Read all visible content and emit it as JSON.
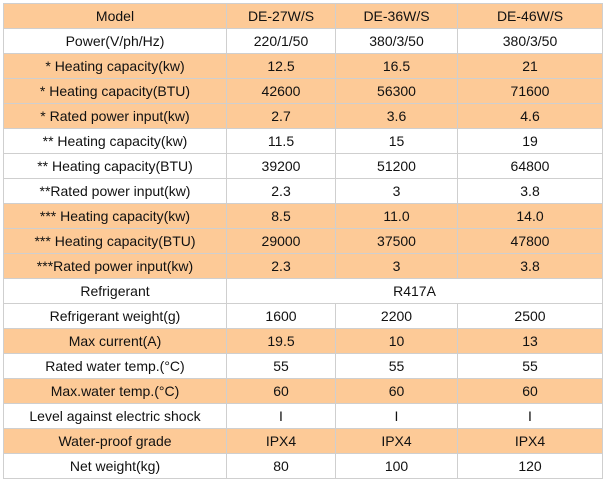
{
  "header": [
    "Model",
    "DE-27W/S",
    "DE-36W/S",
    "DE-46W/S"
  ],
  "rows": [
    {
      "label": "Power(V/ph/Hz)",
      "values": [
        "220/1/50",
        "380/3/50",
        "380/3/50"
      ],
      "shaded": false
    },
    {
      "label": "* Heating capacity(kw)",
      "values": [
        "12.5",
        "16.5",
        "21"
      ],
      "shaded": true
    },
    {
      "label": "* Heating capacity(BTU)",
      "values": [
        "42600",
        "56300",
        "71600"
      ],
      "shaded": true
    },
    {
      "label": "* Rated power input(kw)",
      "values": [
        "2.7",
        "3.6",
        "4.6"
      ],
      "shaded": true
    },
    {
      "label": "** Heating capacity(kw)",
      "values": [
        "11.5",
        "15",
        "19"
      ],
      "shaded": false
    },
    {
      "label": "** Heating capacity(BTU)",
      "values": [
        "39200",
        "51200",
        "64800"
      ],
      "shaded": false
    },
    {
      "label": "**Rated power input(kw)",
      "values": [
        "2.3",
        "3",
        "3.8"
      ],
      "shaded": false
    },
    {
      "label": "*** Heating capacity(kw)",
      "values": [
        "8.5",
        "11.0",
        "14.0"
      ],
      "shaded": true
    },
    {
      "label": "*** Heating capacity(BTU)",
      "values": [
        "29000",
        "37500",
        "47800"
      ],
      "shaded": true
    },
    {
      "label": "***Rated power input(kw)",
      "values": [
        "2.3",
        "3",
        "3.8"
      ],
      "shaded": true
    },
    {
      "label": "Refrigerant",
      "values": [
        "R417A"
      ],
      "shaded": false
    },
    {
      "label": "Refrigerant weight(g)",
      "values": [
        "1600",
        "2200",
        "2500"
      ],
      "shaded": false
    },
    {
      "label": "Max current(A)",
      "values": [
        "19.5",
        "10",
        "13"
      ],
      "shaded": true
    },
    {
      "label": "Rated water temp.(°C)",
      "values": [
        "55",
        "55",
        "55"
      ],
      "shaded": false
    },
    {
      "label": "Max.water temp.(°C)",
      "values": [
        "60",
        "60",
        "60"
      ],
      "shaded": true
    },
    {
      "label": "Level against electric shock",
      "values": [
        "I",
        "I",
        "I"
      ],
      "shaded": false
    },
    {
      "label": "Water-proof grade",
      "values": [
        "IPX4",
        "IPX4",
        "IPX4"
      ],
      "shaded": true
    },
    {
      "label": "Net weight(kg)",
      "values": [
        "80",
        "100",
        "120"
      ],
      "shaded": false
    }
  ]
}
